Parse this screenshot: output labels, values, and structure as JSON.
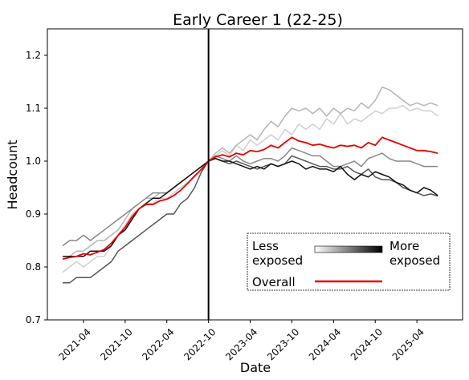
{
  "chart_data": {
    "type": "line",
    "title": "Early Career 1 (22-25)",
    "xlabel": "Date",
    "ylabel": "Headcount",
    "ylim": [
      0.7,
      1.25
    ],
    "yticks": [
      "0.7",
      "0.8",
      "0.9",
      "1.0",
      "1.1",
      "1.2"
    ],
    "xticks": [
      "2021-04",
      "2021-10",
      "2022-04",
      "2022-10",
      "2023-04",
      "2023-10",
      "2024-04",
      "2024-10",
      "2025-04"
    ],
    "x": [
      "2021-01",
      "2021-02",
      "2021-03",
      "2021-04",
      "2021-05",
      "2021-06",
      "2021-07",
      "2021-08",
      "2021-09",
      "2021-10",
      "2021-11",
      "2021-12",
      "2022-01",
      "2022-02",
      "2022-03",
      "2022-04",
      "2022-05",
      "2022-06",
      "2022-07",
      "2022-08",
      "2022-09",
      "2022-10",
      "2022-11",
      "2022-12",
      "2023-01",
      "2023-02",
      "2023-03",
      "2023-04",
      "2023-05",
      "2023-06",
      "2023-07",
      "2023-08",
      "2023-09",
      "2023-10",
      "2023-11",
      "2023-12",
      "2024-01",
      "2024-02",
      "2024-03",
      "2024-04",
      "2024-05",
      "2024-06",
      "2024-07",
      "2024-08",
      "2024-09",
      "2024-10",
      "2024-11",
      "2024-12",
      "2025-01",
      "2025-02",
      "2025-03",
      "2025-04",
      "2025-05",
      "2025-06",
      "2025-07"
    ],
    "reference_line": "2022-10",
    "grid": false,
    "series": [
      {
        "color": "#cfcfcf",
        "values": [
          0.79,
          0.8,
          0.81,
          0.8,
          0.81,
          0.82,
          0.82,
          0.84,
          0.86,
          0.88,
          0.9,
          0.91,
          0.92,
          0.92,
          0.93,
          0.93,
          0.94,
          0.95,
          0.96,
          0.97,
          0.98,
          1.0,
          1.01,
          1.02,
          1.01,
          1.03,
          1.02,
          1.04,
          1.03,
          1.04,
          1.05,
          1.04,
          1.06,
          1.05,
          1.07,
          1.06,
          1.07,
          1.06,
          1.08,
          1.07,
          1.09,
          1.07,
          1.08,
          1.075,
          1.085,
          1.095,
          1.09,
          1.1,
          1.1,
          1.105,
          1.095,
          1.1,
          1.095,
          1.095,
          1.085
        ]
      },
      {
        "color": "#b5b5b5",
        "values": [
          0.82,
          0.82,
          0.83,
          0.83,
          0.84,
          0.85,
          0.85,
          0.86,
          0.87,
          0.89,
          0.91,
          0.92,
          0.93,
          0.93,
          0.94,
          0.94,
          0.95,
          0.96,
          0.97,
          0.98,
          0.99,
          1.0,
          1.015,
          1.025,
          1.015,
          1.03,
          1.04,
          1.05,
          1.04,
          1.06,
          1.075,
          1.065,
          1.085,
          1.1,
          1.095,
          1.1,
          1.09,
          1.1,
          1.085,
          1.1,
          1.09,
          1.1,
          1.095,
          1.11,
          1.1,
          1.115,
          1.14,
          1.135,
          1.125,
          1.115,
          1.105,
          1.11,
          1.105,
          1.11,
          1.105
        ]
      },
      {
        "color": "#888888",
        "values": [
          0.84,
          0.85,
          0.85,
          0.86,
          0.85,
          0.86,
          0.87,
          0.88,
          0.89,
          0.9,
          0.91,
          0.92,
          0.93,
          0.94,
          0.94,
          0.94,
          0.95,
          0.96,
          0.97,
          0.98,
          0.99,
          1.0,
          1.01,
          1.005,
          1.0,
          1.01,
          1.0,
          0.995,
          1.0,
          1.005,
          1.005,
          1.0,
          1.01,
          1.025,
          1.02,
          1.015,
          1.01,
          1.01,
          1.0,
          0.99,
          0.99,
          0.995,
          1.0,
          0.99,
          1.005,
          1.01,
          1.015,
          1.005,
          1.0,
          1.0,
          1.0,
          0.995,
          0.99,
          0.99,
          0.99
        ]
      },
      {
        "color": "#555555",
        "values": [
          0.77,
          0.77,
          0.78,
          0.78,
          0.78,
          0.79,
          0.8,
          0.81,
          0.83,
          0.84,
          0.85,
          0.86,
          0.87,
          0.88,
          0.89,
          0.9,
          0.9,
          0.92,
          0.93,
          0.95,
          0.98,
          1.0,
          1.005,
          1.0,
          0.995,
          1.0,
          0.995,
          0.99,
          0.985,
          0.99,
          0.995,
          0.99,
          0.995,
          1.01,
          1.005,
          1.0,
          0.995,
          0.99,
          0.99,
          0.985,
          0.985,
          0.99,
          0.98,
          0.975,
          0.985,
          0.97,
          0.965,
          0.965,
          0.96,
          0.95,
          0.945,
          0.94,
          0.935,
          0.938,
          0.934
        ]
      },
      {
        "color": "#101010",
        "values": [
          0.82,
          0.82,
          0.82,
          0.82,
          0.83,
          0.83,
          0.83,
          0.84,
          0.86,
          0.87,
          0.89,
          0.91,
          0.92,
          0.93,
          0.93,
          0.94,
          0.95,
          0.96,
          0.97,
          0.98,
          0.99,
          1.0,
          1.005,
          1.0,
          1.0,
          0.995,
          0.99,
          0.985,
          0.99,
          0.985,
          0.995,
          0.99,
          0.995,
          1.0,
          0.995,
          0.985,
          0.99,
          0.985,
          0.985,
          0.98,
          0.99,
          0.975,
          0.965,
          0.975,
          0.97,
          0.98,
          0.975,
          0.97,
          0.96,
          0.955,
          0.945,
          0.94,
          0.95,
          0.945,
          0.935
        ]
      },
      {
        "name": "Overall",
        "color": "#e60000",
        "values": [
          0.815,
          0.818,
          0.82,
          0.825,
          0.823,
          0.828,
          0.833,
          0.845,
          0.86,
          0.875,
          0.895,
          0.91,
          0.918,
          0.918,
          0.925,
          0.928,
          0.935,
          0.945,
          0.958,
          0.972,
          0.985,
          1.0,
          1.008,
          1.012,
          1.008,
          1.015,
          1.012,
          1.02,
          1.018,
          1.022,
          1.03,
          1.025,
          1.035,
          1.045,
          1.038,
          1.035,
          1.03,
          1.032,
          1.028,
          1.025,
          1.03,
          1.028,
          1.03,
          1.025,
          1.035,
          1.03,
          1.045,
          1.04,
          1.035,
          1.03,
          1.025,
          1.02,
          1.02,
          1.018,
          1.015
        ]
      }
    ],
    "legend": {
      "placement": "bottom-right",
      "less_label_line1": "Less",
      "less_label_line2": "exposed",
      "more_label_line1": "More",
      "more_label_line2": "exposed",
      "overall_label": "Overall",
      "gradient_from": "#ffffff",
      "gradient_to": "#000000",
      "overall_color": "#e60000"
    }
  }
}
